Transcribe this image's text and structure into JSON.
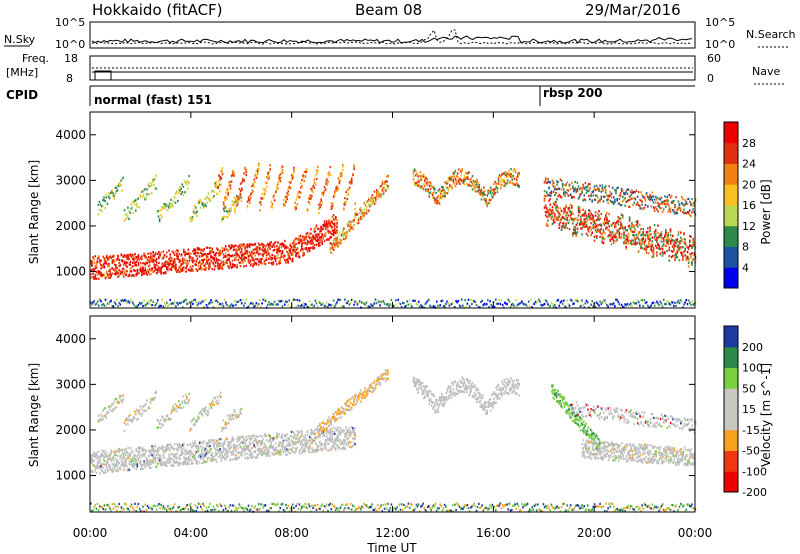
{
  "header": {
    "station": "Hokkaido (fitACF)",
    "beam": "Beam 08",
    "date": "29/Mar/2016"
  },
  "strip_labels": {
    "nsky": "N.Sky",
    "nsky_top": "10^5",
    "nsky_bottom": "10^0",
    "nsky_right_top": "10^5",
    "nsky_right_bottom": "10^0",
    "nsearch": "N.Search",
    "freq": "Freq.",
    "freq_unit": "[MHz]",
    "freq_top": "18",
    "freq_bottom": "8",
    "nave_top": "60",
    "nave_bottom": "0",
    "nave": "Nave",
    "cpid": "CPID",
    "cpid_mode1": "normal (fast) 151",
    "cpid_mode2": "rbsp 200"
  },
  "colors": {
    "power_scale": [
      "#0000ee",
      "#1c52a0",
      "#2e8a4a",
      "#b8d850",
      "#f8c020",
      "#f08010",
      "#e03010",
      "#ee0000"
    ],
    "velocity_scale": [
      "#ee0000",
      "#f03810",
      "#f8a020",
      "#c8c8c0",
      "#c8c8c0",
      "#78d040",
      "#2e8a4a",
      "#1c3aa0"
    ],
    "ground_scatter": "#bebebe"
  },
  "chart_data": [
    {
      "type": "heatmap",
      "ylabel": "Slant Range [km]",
      "colorbar_label": "Power [dB]",
      "colorbar_ticks": [
        "4",
        "8",
        "12",
        "16",
        "20",
        "24",
        "28"
      ],
      "ylim": [
        200,
        4500
      ],
      "y_ticks": [
        "1000",
        "2000",
        "3000",
        "4000"
      ]
    },
    {
      "type": "heatmap",
      "ylabel": "Slant Range [km]",
      "colorbar_label": "Velocity [m s^-1]",
      "colorbar_ticks": [
        "200",
        "100",
        "50",
        "15",
        "-15",
        "-50",
        "-100",
        "-200"
      ],
      "ylim": [
        200,
        4500
      ],
      "y_ticks": [
        "1000",
        "2000",
        "3000",
        "4000"
      ],
      "xlabel": "Time UT",
      "x_ticks": [
        "00:00",
        "04:00",
        "08:00",
        "12:00",
        "16:00",
        "20:00",
        "00:00"
      ]
    }
  ]
}
